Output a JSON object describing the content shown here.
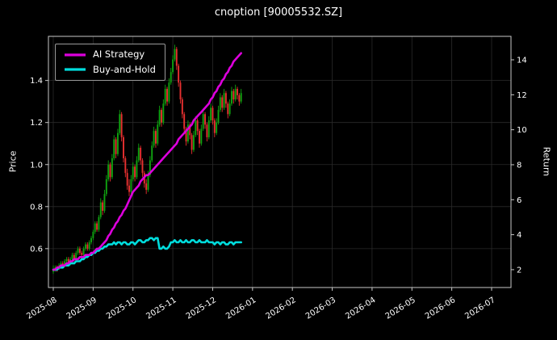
{
  "window": {
    "title": "cnoption [90005532.SZ]"
  },
  "chart_data": {
    "type": "candlestick",
    "title": "cnoption [90005532.SZ]",
    "xlabel": "",
    "ylabel_left": "Price",
    "ylabel_right": "Return",
    "grid": true,
    "legend_position": "upper left",
    "background": "#000000",
    "text_color": "#ffffff",
    "grid_color": "#2a2a2a",
    "spine_color": "#c8c8c8",
    "x_tick_labels": [
      "2025-08",
      "2025-09",
      "2025-10",
      "2025-11",
      "2025-12",
      "2026-01",
      "2026-02",
      "2026-03",
      "2026-04",
      "2026-05",
      "2026-06",
      "2026-07"
    ],
    "y_ticks_left": [
      0.6,
      0.8,
      1.0,
      1.2,
      1.4
    ],
    "y_ticks_right": [
      2,
      4,
      6,
      8,
      10,
      12,
      14
    ],
    "ylim_left": [
      0.415,
      1.61
    ],
    "ylim_right": [
      0.98,
      15.34
    ],
    "candles_per_month": 21,
    "candle_colors": {
      "up": "#10a310",
      "down": "#e83030"
    },
    "ohlc": [
      [
        0.49,
        0.52,
        0.48,
        0.5
      ],
      [
        0.5,
        0.52,
        0.49,
        0.51
      ],
      [
        0.51,
        0.52,
        0.49,
        0.5
      ],
      [
        0.5,
        0.53,
        0.5,
        0.52
      ],
      [
        0.52,
        0.54,
        0.51,
        0.53
      ],
      [
        0.53,
        0.54,
        0.51,
        0.52
      ],
      [
        0.52,
        0.55,
        0.52,
        0.54
      ],
      [
        0.54,
        0.56,
        0.53,
        0.55
      ],
      [
        0.55,
        0.56,
        0.52,
        0.53
      ],
      [
        0.53,
        0.56,
        0.52,
        0.55
      ],
      [
        0.55,
        0.58,
        0.54,
        0.57
      ],
      [
        0.57,
        0.58,
        0.54,
        0.55
      ],
      [
        0.55,
        0.59,
        0.54,
        0.58
      ],
      [
        0.58,
        0.61,
        0.57,
        0.6
      ],
      [
        0.6,
        0.61,
        0.57,
        0.58
      ],
      [
        0.58,
        0.59,
        0.55,
        0.57
      ],
      [
        0.57,
        0.61,
        0.56,
        0.6
      ],
      [
        0.6,
        0.63,
        0.59,
        0.62
      ],
      [
        0.62,
        0.63,
        0.59,
        0.6
      ],
      [
        0.6,
        0.64,
        0.59,
        0.63
      ],
      [
        0.63,
        0.66,
        0.62,
        0.65
      ],
      [
        0.65,
        0.69,
        0.64,
        0.68
      ],
      [
        0.68,
        0.73,
        0.67,
        0.72
      ],
      [
        0.72,
        0.73,
        0.68,
        0.69
      ],
      [
        0.69,
        0.76,
        0.68,
        0.75
      ],
      [
        0.75,
        0.84,
        0.74,
        0.82
      ],
      [
        0.82,
        0.83,
        0.76,
        0.78
      ],
      [
        0.78,
        0.88,
        0.77,
        0.86
      ],
      [
        0.86,
        0.95,
        0.85,
        0.93
      ],
      [
        0.93,
        1.02,
        0.92,
        1.0
      ],
      [
        1.0,
        1.01,
        0.92,
        0.94
      ],
      [
        0.94,
        1.05,
        0.93,
        1.03
      ],
      [
        1.03,
        1.14,
        1.02,
        1.12
      ],
      [
        1.12,
        1.13,
        1.03,
        1.05
      ],
      [
        1.05,
        1.17,
        1.04,
        1.15
      ],
      [
        1.15,
        1.26,
        1.14,
        1.24
      ],
      [
        1.24,
        1.25,
        1.11,
        1.13
      ],
      [
        1.13,
        1.14,
        1.01,
        1.03
      ],
      [
        1.03,
        1.04,
        0.94,
        0.96
      ],
      [
        0.96,
        0.98,
        0.88,
        0.9
      ],
      [
        0.9,
        0.93,
        0.85,
        0.87
      ],
      [
        0.87,
        0.95,
        0.86,
        0.93
      ],
      [
        0.93,
        1.01,
        0.92,
        0.99
      ],
      [
        0.99,
        1.0,
        0.92,
        0.94
      ],
      [
        0.94,
        1.04,
        0.93,
        1.02
      ],
      [
        1.02,
        1.1,
        1.01,
        1.08
      ],
      [
        1.08,
        1.09,
        1.0,
        1.02
      ],
      [
        1.02,
        1.03,
        0.94,
        0.96
      ],
      [
        0.96,
        0.97,
        0.89,
        0.91
      ],
      [
        0.91,
        0.93,
        0.86,
        0.88
      ],
      [
        0.88,
        0.97,
        0.87,
        0.95
      ],
      [
        0.95,
        1.04,
        0.94,
        1.02
      ],
      [
        1.02,
        1.11,
        1.01,
        1.09
      ],
      [
        1.09,
        1.18,
        1.08,
        1.16
      ],
      [
        1.16,
        1.17,
        1.08,
        1.1
      ],
      [
        1.1,
        1.21,
        1.09,
        1.19
      ],
      [
        1.19,
        1.28,
        1.18,
        1.26
      ],
      [
        1.26,
        1.27,
        1.18,
        1.2
      ],
      [
        1.2,
        1.31,
        1.19,
        1.29
      ],
      [
        1.29,
        1.38,
        1.28,
        1.36
      ],
      [
        1.36,
        1.37,
        1.28,
        1.3
      ],
      [
        1.3,
        1.41,
        1.29,
        1.39
      ],
      [
        1.39,
        1.46,
        1.38,
        1.44
      ],
      [
        1.44,
        1.52,
        1.43,
        1.5
      ],
      [
        1.5,
        1.57,
        1.49,
        1.55
      ],
      [
        1.55,
        1.56,
        1.45,
        1.47
      ],
      [
        1.47,
        1.48,
        1.37,
        1.39
      ],
      [
        1.39,
        1.4,
        1.29,
        1.31
      ],
      [
        1.31,
        1.32,
        1.22,
        1.24
      ],
      [
        1.24,
        1.25,
        1.15,
        1.17
      ],
      [
        1.17,
        1.18,
        1.09,
        1.11
      ],
      [
        1.11,
        1.21,
        1.1,
        1.19
      ],
      [
        1.19,
        1.2,
        1.12,
        1.14
      ],
      [
        1.14,
        1.15,
        1.05,
        1.07
      ],
      [
        1.07,
        1.16,
        1.06,
        1.14
      ],
      [
        1.14,
        1.23,
        1.13,
        1.21
      ],
      [
        1.21,
        1.22,
        1.14,
        1.16
      ],
      [
        1.16,
        1.17,
        1.08,
        1.1
      ],
      [
        1.1,
        1.19,
        1.09,
        1.17
      ],
      [
        1.17,
        1.26,
        1.16,
        1.24
      ],
      [
        1.24,
        1.25,
        1.17,
        1.19
      ],
      [
        1.19,
        1.2,
        1.11,
        1.13
      ],
      [
        1.13,
        1.23,
        1.12,
        1.21
      ],
      [
        1.21,
        1.29,
        1.2,
        1.27
      ],
      [
        1.27,
        1.28,
        1.19,
        1.21
      ],
      [
        1.21,
        1.22,
        1.13,
        1.15
      ],
      [
        1.15,
        1.22,
        1.14,
        1.2
      ],
      [
        1.2,
        1.28,
        1.19,
        1.26
      ],
      [
        1.26,
        1.34,
        1.25,
        1.32
      ],
      [
        1.32,
        1.33,
        1.25,
        1.27
      ],
      [
        1.27,
        1.36,
        1.26,
        1.34
      ],
      [
        1.34,
        1.35,
        1.27,
        1.29
      ],
      [
        1.29,
        1.3,
        1.22,
        1.24
      ],
      [
        1.24,
        1.31,
        1.23,
        1.29
      ],
      [
        1.29,
        1.37,
        1.28,
        1.35
      ],
      [
        1.35,
        1.36,
        1.29,
        1.31
      ],
      [
        1.31,
        1.38,
        1.3,
        1.36
      ],
      [
        1.36,
        1.37,
        1.31,
        1.33
      ],
      [
        1.33,
        1.34,
        1.28,
        1.3
      ],
      [
        1.3,
        1.36,
        1.29,
        1.34
      ]
    ],
    "series": [
      {
        "name": "AI Strategy",
        "color": "#dd00dd",
        "axis": "left",
        "values": [
          0.5,
          0.5,
          0.51,
          0.51,
          0.52,
          0.52,
          0.52,
          0.53,
          0.53,
          0.54,
          0.54,
          0.55,
          0.55,
          0.55,
          0.56,
          0.56,
          0.56,
          0.57,
          0.57,
          0.57,
          0.58,
          0.58,
          0.59,
          0.6,
          0.6,
          0.61,
          0.62,
          0.63,
          0.64,
          0.66,
          0.67,
          0.69,
          0.7,
          0.72,
          0.73,
          0.75,
          0.76,
          0.78,
          0.79,
          0.81,
          0.83,
          0.85,
          0.87,
          0.88,
          0.89,
          0.9,
          0.92,
          0.93,
          0.94,
          0.95,
          0.95,
          0.96,
          0.97,
          0.98,
          0.99,
          1.0,
          1.01,
          1.02,
          1.03,
          1.04,
          1.05,
          1.06,
          1.07,
          1.08,
          1.09,
          1.1,
          1.12,
          1.13,
          1.14,
          1.15,
          1.16,
          1.17,
          1.18,
          1.19,
          1.21,
          1.22,
          1.23,
          1.24,
          1.25,
          1.26,
          1.27,
          1.28,
          1.29,
          1.31,
          1.32,
          1.34,
          1.35,
          1.37,
          1.38,
          1.4,
          1.41,
          1.43,
          1.44,
          1.46,
          1.47,
          1.49,
          1.5,
          1.51,
          1.52,
          1.53
        ]
      },
      {
        "name": "Buy-and-Hold",
        "color": "#00dddd",
        "axis": "left",
        "values": [
          0.5,
          0.5,
          0.5,
          0.51,
          0.51,
          0.51,
          0.52,
          0.52,
          0.52,
          0.53,
          0.53,
          0.53,
          0.54,
          0.54,
          0.54,
          0.55,
          0.55,
          0.56,
          0.56,
          0.57,
          0.57,
          0.58,
          0.58,
          0.59,
          0.59,
          0.6,
          0.6,
          0.61,
          0.61,
          0.62,
          0.62,
          0.62,
          0.63,
          0.62,
          0.63,
          0.63,
          0.62,
          0.63,
          0.63,
          0.62,
          0.62,
          0.63,
          0.63,
          0.62,
          0.63,
          0.64,
          0.64,
          0.63,
          0.63,
          0.64,
          0.64,
          0.65,
          0.65,
          0.64,
          0.65,
          0.65,
          0.6,
          0.6,
          0.61,
          0.6,
          0.6,
          0.61,
          0.63,
          0.63,
          0.64,
          0.63,
          0.63,
          0.64,
          0.63,
          0.63,
          0.64,
          0.63,
          0.63,
          0.64,
          0.64,
          0.63,
          0.63,
          0.64,
          0.63,
          0.63,
          0.63,
          0.64,
          0.63,
          0.63,
          0.63,
          0.62,
          0.63,
          0.63,
          0.62,
          0.63,
          0.63,
          0.62,
          0.62,
          0.63,
          0.63,
          0.62,
          0.63,
          0.63,
          0.63,
          0.63
        ]
      }
    ]
  }
}
